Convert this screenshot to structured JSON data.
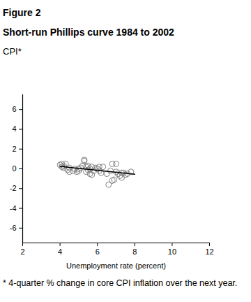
{
  "chart_data": {
    "type": "scatter",
    "title": "Figure 2",
    "subtitle": "Short-run Phillips curve 1984 to 2002",
    "ylabel": "CPI*",
    "xlabel": "Unemployment rate (percent)",
    "caption": "* 4-quarter % change in core CPI inflation over the next year.",
    "xlim": [
      2,
      12
    ],
    "xticks": [
      2,
      4,
      6,
      8,
      10,
      12
    ],
    "ylim": [
      -7.5,
      7.5
    ],
    "yticks": [
      -6,
      -4,
      -2,
      0,
      2,
      4,
      6
    ],
    "grid": false,
    "series": [
      {
        "type": "scatter",
        "marker": "circle-open",
        "color": "#777777",
        "x": [
          4.0,
          4.1,
          4.1,
          4.2,
          4.2,
          4.3,
          4.4,
          4.5,
          4.5,
          4.7,
          4.8,
          4.9,
          5.0,
          5.1,
          5.2,
          5.3,
          5.3,
          5.4,
          5.4,
          5.5,
          5.5,
          5.6,
          5.6,
          5.7,
          5.8,
          5.9,
          6.0,
          6.1,
          6.1,
          6.2,
          6.3,
          6.5,
          6.6,
          6.7,
          6.8,
          6.9,
          6.8,
          7.0,
          7.0,
          7.1,
          7.2,
          7.3,
          7.3,
          7.4,
          7.5,
          7.6,
          7.8,
          5.0,
          5.7
        ],
        "values": [
          0.4,
          0.2,
          0.5,
          0.3,
          0.1,
          0.5,
          -0.1,
          -0.3,
          0.1,
          -0.2,
          0.0,
          -0.3,
          -0.2,
          0.1,
          0.3,
          0.9,
          0.8,
          0.2,
          -0.3,
          0.3,
          -0.1,
          0.0,
          -0.5,
          0.2,
          -0.2,
          0.1,
          0.0,
          -0.2,
          0.2,
          -0.4,
          0.2,
          -0.5,
          -1.6,
          -0.2,
          -1.2,
          -1.1,
          0.5,
          0.5,
          -0.3,
          -0.5,
          -0.7,
          -0.4,
          -0.9,
          -0.4,
          -0.6,
          -0.5,
          -0.3,
          0.0,
          -0.6
        ]
      },
      {
        "type": "line",
        "line_style": "solid",
        "color": "#000000",
        "x": [
          4.0,
          8.0
        ],
        "values": [
          0.25,
          -0.55
        ]
      }
    ]
  }
}
